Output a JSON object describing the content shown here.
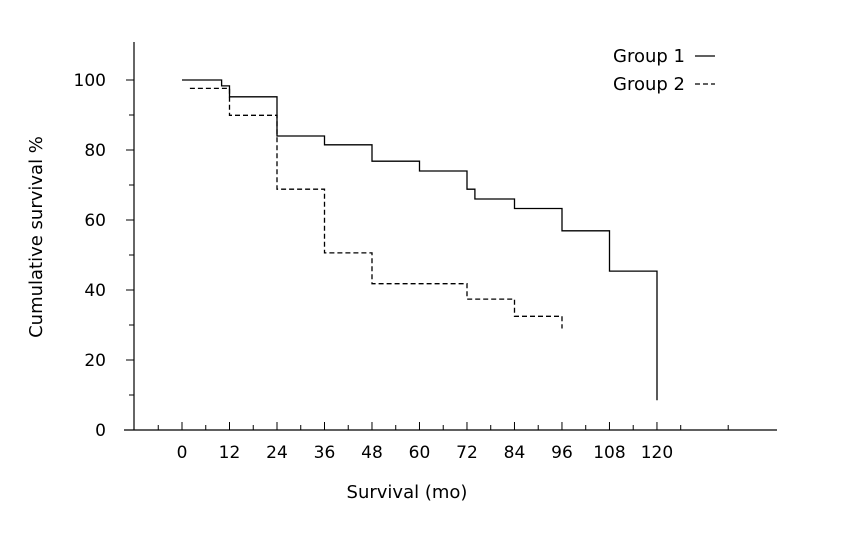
{
  "chart_data": {
    "type": "line",
    "title": "",
    "xlabel": "Survival (mo)",
    "ylabel": "Cumulative survival %",
    "x_ticks": [
      0,
      12,
      24,
      36,
      48,
      60,
      72,
      84,
      96,
      108,
      120
    ],
    "y_ticks": [
      0,
      20,
      40,
      60,
      80,
      100
    ],
    "xlim": [
      -12,
      150
    ],
    "ylim": [
      0,
      111
    ],
    "legend_position": "top-right",
    "grid": false,
    "series": [
      {
        "name": "Group 1",
        "line_style": "solid",
        "color": "#000000",
        "points": [
          [
            0,
            100
          ],
          [
            10,
            100
          ],
          [
            10,
            98.3
          ],
          [
            12,
            98.3
          ],
          [
            12,
            95.2
          ],
          [
            24,
            95.2
          ],
          [
            24,
            84
          ],
          [
            36,
            84
          ],
          [
            36,
            81.5
          ],
          [
            48,
            81.5
          ],
          [
            48,
            76.8
          ],
          [
            60,
            76.8
          ],
          [
            60,
            74
          ],
          [
            72,
            74
          ],
          [
            72,
            68.8
          ],
          [
            74,
            68.8
          ],
          [
            74,
            66
          ],
          [
            84,
            66
          ],
          [
            84,
            63.3
          ],
          [
            96,
            63.3
          ],
          [
            96,
            56.9
          ],
          [
            108,
            56.9
          ],
          [
            108,
            45.4
          ],
          [
            120,
            45.4
          ],
          [
            120,
            8.5
          ]
        ]
      },
      {
        "name": "Group 2",
        "line_style": "dashed",
        "color": "#000000",
        "points": [
          [
            2,
            97.6
          ],
          [
            12,
            97.6
          ],
          [
            12,
            89.9
          ],
          [
            24,
            89.9
          ],
          [
            24,
            68.8
          ],
          [
            36,
            68.8
          ],
          [
            36,
            50.6
          ],
          [
            48,
            50.6
          ],
          [
            48,
            41.8
          ],
          [
            72,
            41.8
          ],
          [
            72,
            37.4
          ],
          [
            84,
            37.4
          ],
          [
            84,
            32.5
          ],
          [
            96,
            32.5
          ],
          [
            96,
            29
          ]
        ]
      }
    ]
  }
}
